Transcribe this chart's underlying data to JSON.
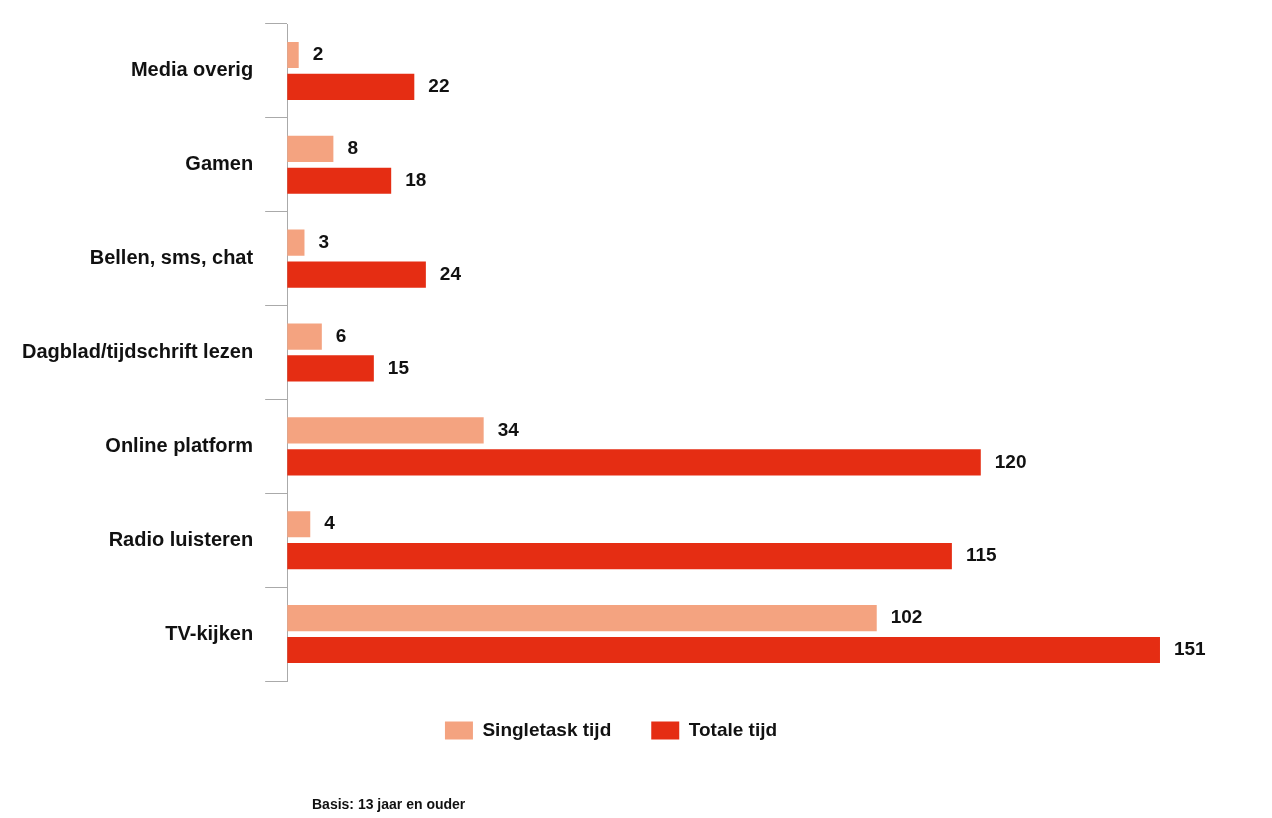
{
  "chart_data": {
    "type": "bar",
    "orientation": "horizontal",
    "categories": [
      "Media overig",
      "Gamen",
      "Bellen, sms, chat",
      "Dagblad/tijdschrift lezen",
      "Online platform",
      "Radio luisteren",
      "TV-kijken"
    ],
    "series": [
      {
        "name": "Singletask tijd",
        "color": "#f4a380",
        "values": [
          2,
          8,
          3,
          6,
          34,
          4,
          102
        ]
      },
      {
        "name": "Totale tijd",
        "color": "#e52d13",
        "values": [
          22,
          18,
          24,
          15,
          120,
          115,
          151
        ]
      }
    ],
    "data_labels": true,
    "legend": "bottom",
    "tick_labels": "y",
    "annotations": [
      "Basis: 13 jaar en ouder"
    ]
  }
}
